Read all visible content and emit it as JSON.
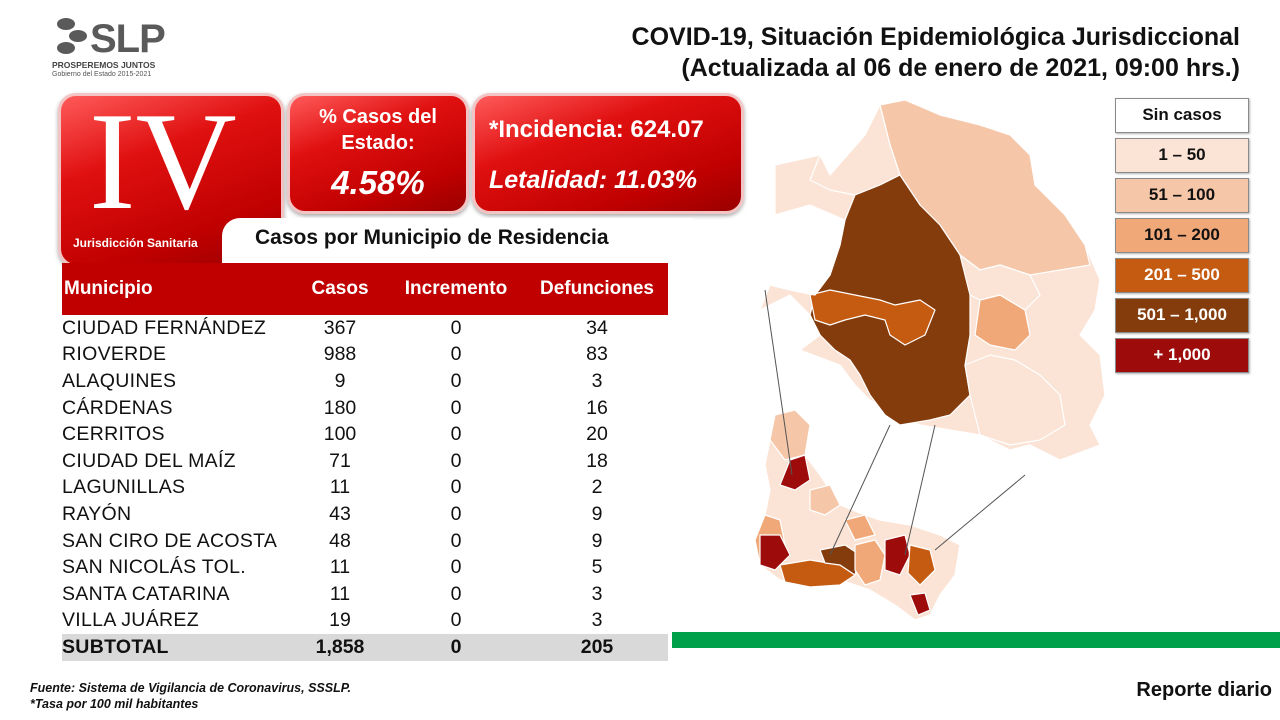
{
  "logo": {
    "wordmark": "SLP",
    "tagline": "PROSPEREMOS JUNTOS",
    "subline": "Gobierno del Estado 2015-2021"
  },
  "header": {
    "title_line1": "COVID-19, Situación Epidemiológica Jurisdiccional",
    "title_line2": "(Actualizada al 06 de enero de 2021, 09:00 hrs.)"
  },
  "jurisdiccion": {
    "numeral": "IV",
    "label": "Jurisdicción Sanitaria"
  },
  "stats": {
    "pct_label": "% Casos del Estado:",
    "pct_value": "4.58%",
    "incidencia": "*Incidencia: 624.07",
    "letalidad": "Letalidad: 11.03%"
  },
  "table": {
    "heading": "Casos por Municipio  de Residencia",
    "columns": [
      "Municipio",
      "Casos",
      "Incremento",
      "Defunciones"
    ],
    "rows": [
      [
        "CIUDAD FERNÁNDEZ",
        "367",
        "0",
        "34"
      ],
      [
        "RIOVERDE",
        "988",
        "0",
        "83"
      ],
      [
        "ALAQUINES",
        "9",
        "0",
        "3"
      ],
      [
        "CÁRDENAS",
        "180",
        "0",
        "16"
      ],
      [
        "CERRITOS",
        "100",
        "0",
        "20"
      ],
      [
        "CIUDAD DEL MAÍZ",
        "71",
        "0",
        "18"
      ],
      [
        "LAGUNILLAS",
        "11",
        "0",
        "2"
      ],
      [
        "RAYÓN",
        "43",
        "0",
        "9"
      ],
      [
        "SAN CIRO DE ACOSTA",
        "48",
        "0",
        "9"
      ],
      [
        "SAN NICOLÁS TOL.",
        "11",
        "0",
        "5"
      ],
      [
        "SANTA CATARINA",
        "11",
        "0",
        "3"
      ],
      [
        "VILLA JUÁREZ",
        "19",
        "0",
        "3"
      ]
    ],
    "total": [
      "SUBTOTAL",
      "1,858",
      "0",
      "205"
    ]
  },
  "legend": [
    {
      "label": "Sin casos",
      "color": "#ffffff",
      "text_color": "#111111"
    },
    {
      "label": "1 – 50",
      "color": "#fbe4d6",
      "text_color": "#111111"
    },
    {
      "label": "51 – 100",
      "color": "#f5c6a8",
      "text_color": "#111111"
    },
    {
      "label": "101 – 200",
      "color": "#f0a878",
      "text_color": "#111111"
    },
    {
      "label": "201 – 500",
      "color": "#c55a11",
      "text_color": "#ffffff"
    },
    {
      "label": "501 – 1,000",
      "color": "#843c0c",
      "text_color": "#ffffff"
    },
    {
      "label": "+ 1,000",
      "color": "#9e0b0b",
      "text_color": "#ffffff"
    }
  ],
  "footer": {
    "fuente": "Fuente: Sistema de Vigilancia de Coronavirus, SSSLP.",
    "tasa": "*Tasa por 100 mil habitantes",
    "reporte": "Reporte diario"
  }
}
